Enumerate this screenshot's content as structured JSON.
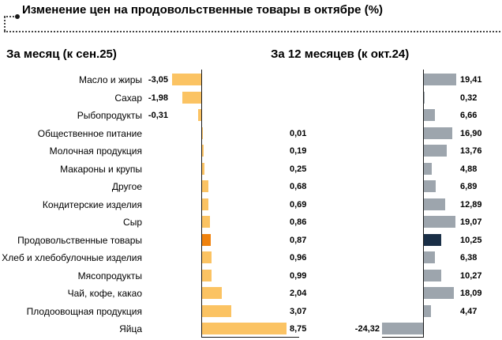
{
  "title": "Изменение цен на продовольственные товары в октябре (%)",
  "left_panel": {
    "header": "За месяц (к сен.25)"
  },
  "right_panel": {
    "header": "За 12 месяцев (к окт.24)"
  },
  "colors": {
    "bar_month": "#FBC363",
    "bar_month_highlight": "#EF820E",
    "bar_year": "#9DA5AD",
    "bar_year_highlight": "#1A2F47",
    "axis": "#1a1a1a",
    "text": "#000000"
  },
  "chart_data": {
    "type": "bar",
    "orientation": "horizontal",
    "title": "Изменение цен на продовольственные товары в октябре (%)",
    "categories": [
      "Масло и жиры",
      "Сахар",
      "Рыбопродукты",
      "Общественное питание",
      "Молочная продукция",
      "Макароны и крупы",
      "Другое",
      "Кондитерские изделия",
      "Сыр",
      "Продовольственные товары",
      "Хлеб и хлебобулочные изделия",
      "Мясопродукты",
      "Чай, кофе, какао",
      "Плодоовощная продукция",
      "Яйца"
    ],
    "series": [
      {
        "name": "За месяц (к сен.25)",
        "values": [
          -3.05,
          -1.98,
          -0.31,
          0.01,
          0.19,
          0.25,
          0.68,
          0.69,
          0.86,
          0.87,
          0.96,
          0.99,
          2.04,
          3.07,
          8.75
        ],
        "labels": [
          "-3,05",
          "-1,98",
          "-0,31",
          "0,01",
          "0,19",
          "0,25",
          "0,68",
          "0,69",
          "0,86",
          "0,87",
          "0,96",
          "0,99",
          "2,04",
          "3,07",
          "8,75"
        ]
      },
      {
        "name": "За 12 месяцев (к окт.24)",
        "values": [
          19.41,
          0.32,
          6.66,
          16.9,
          13.76,
          4.88,
          6.89,
          12.89,
          19.07,
          10.25,
          6.38,
          10.27,
          18.09,
          4.47,
          -24.32
        ],
        "labels": [
          "19,41",
          "0,32",
          "6,66",
          "16,90",
          "13,76",
          "4,88",
          "6,89",
          "12,89",
          "19,07",
          "10,25",
          "6,38",
          "10,27",
          "18,09",
          "4,47",
          "-24,32"
        ]
      }
    ],
    "highlight_category": "Продовольственные товары",
    "highlight_index": 9,
    "grid": false,
    "legend": false
  }
}
